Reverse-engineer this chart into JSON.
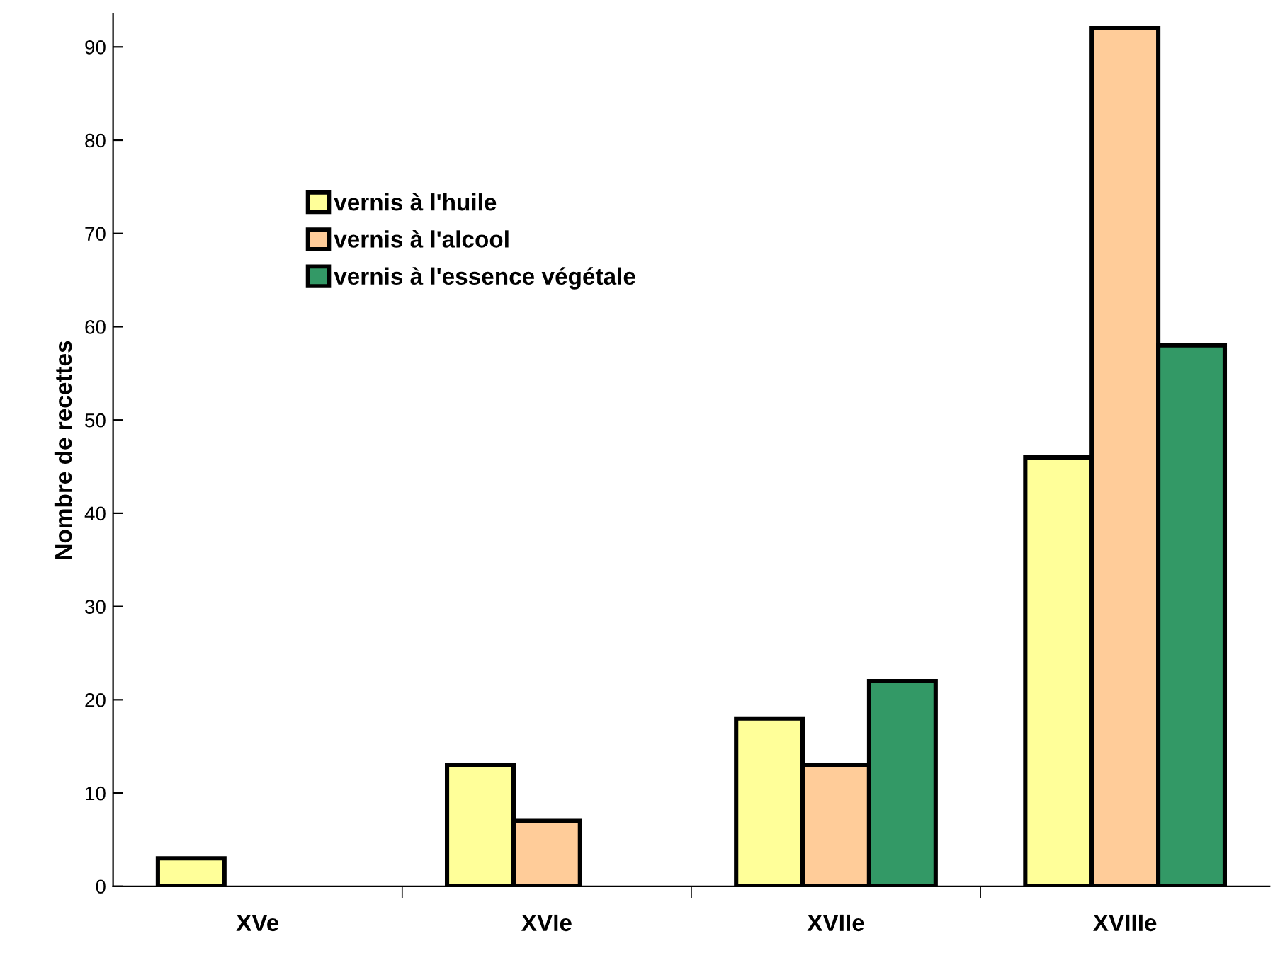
{
  "chart_data": {
    "type": "bar",
    "ylabel": "Nombre de recettes",
    "categories": [
      "XVe",
      "XVIe",
      "XVIIe",
      "XVIIIe"
    ],
    "series": [
      {
        "name": "vernis à l'huile",
        "color": "#ffff99",
        "values": [
          3,
          13,
          18,
          46
        ]
      },
      {
        "name": "vernis à l'alcool",
        "color": "#ffcc99",
        "values": [
          null,
          7,
          13,
          92
        ]
      },
      {
        "name": "vernis à l'essence végétale",
        "color": "#339966",
        "values": [
          null,
          null,
          22,
          58
        ]
      }
    ],
    "ylim": [
      0,
      93.5
    ],
    "yticks": [
      0,
      10,
      20,
      30,
      40,
      50,
      60,
      70,
      80,
      90
    ],
    "grid": false,
    "legend": "top left"
  }
}
